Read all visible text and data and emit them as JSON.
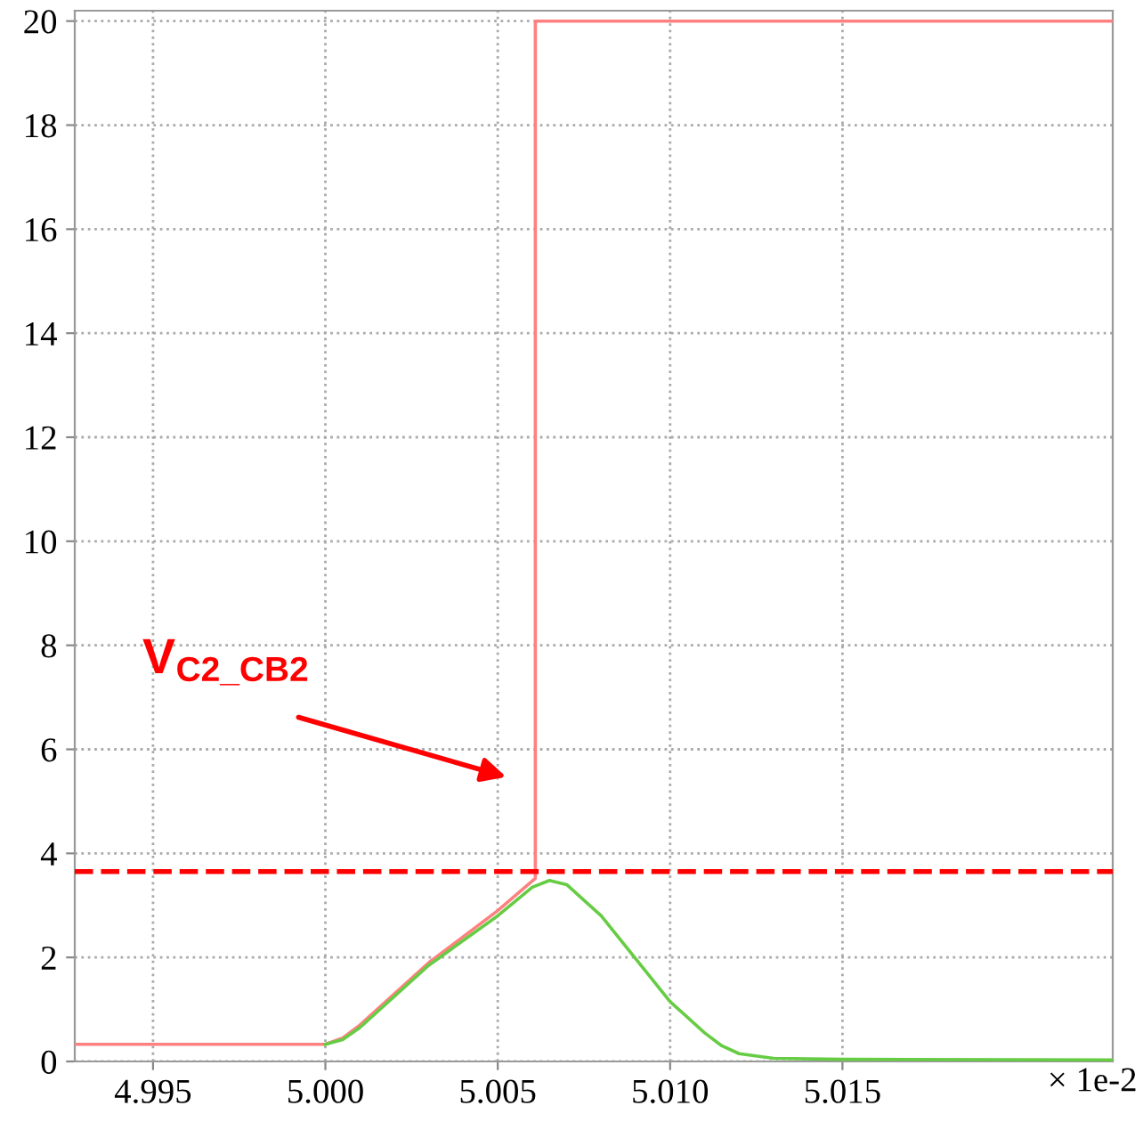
{
  "chart_data": {
    "type": "line",
    "xlim": [
      4.99273,
      5.02284
    ],
    "ylim": [
      0,
      20.2
    ],
    "xticks": [
      4.995,
      {
        "value": 5.0,
        "label": "5.000"
      },
      5.005,
      {
        "value": 5.01,
        "label": "5.010"
      },
      5.015
    ],
    "yticks": [
      0,
      2,
      4,
      6,
      8,
      10,
      12,
      14,
      16,
      18,
      20
    ],
    "grid": true,
    "line_style": "solid",
    "marker": "none",
    "series": [
      {
        "color": "#ff8080",
        "x": [
          4.99273,
          5.0,
          5.0005,
          5.001,
          5.003,
          5.005,
          5.00609,
          5.00609,
          5.02284
        ],
        "values": [
          0.33,
          0.33,
          0.45,
          0.7,
          1.9,
          2.9,
          3.52,
          20,
          20
        ]
      },
      {
        "color": "#66cc44",
        "x": [
          5.0,
          5.0005,
          5.001,
          5.003,
          5.005,
          5.006,
          5.0065,
          5.007,
          5.008,
          5.01,
          5.011,
          5.0115,
          5.012,
          5.013,
          5.015,
          5.02284
        ],
        "values": [
          0.33,
          0.42,
          0.65,
          1.85,
          2.8,
          3.35,
          3.48,
          3.4,
          2.8,
          1.15,
          0.55,
          0.3,
          0.15,
          0.06,
          0.04,
          0.03
        ]
      }
    ],
    "ref_lines": [
      {
        "axis": "y",
        "value": 3.65,
        "color": "#ff0000",
        "line_style": "dashed"
      }
    ],
    "annotations": [
      "V$_{C2_CB2}$",
      "× 1e-2"
    ]
  }
}
